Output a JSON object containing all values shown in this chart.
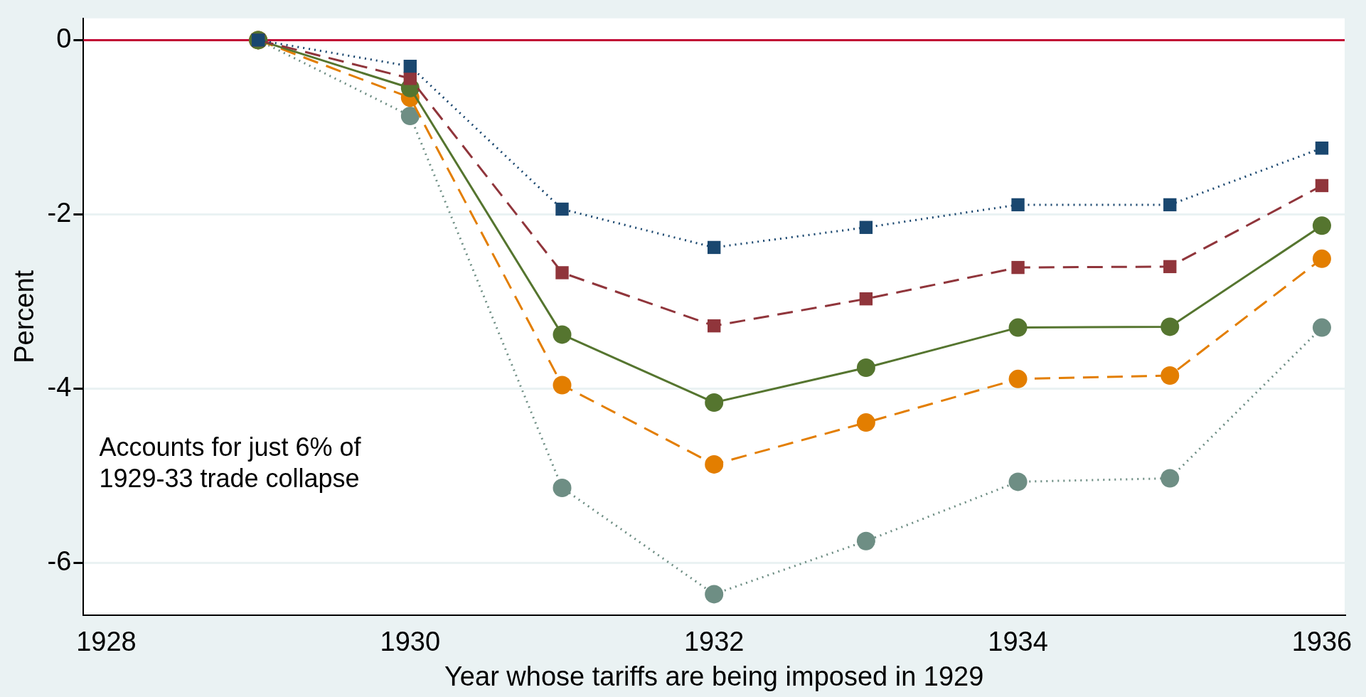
{
  "chart_data": {
    "type": "line",
    "xlabel": "Year whose tariffs are being imposed in 1929",
    "ylabel": "Percent",
    "x": [
      1929,
      1930,
      1931,
      1932,
      1933,
      1934,
      1935,
      1936
    ],
    "series": [
      {
        "color": "#1a476f",
        "marker": "square",
        "line_style": "dotted",
        "values": [
          0,
          -0.3,
          -1.94,
          -2.38,
          -2.15,
          -1.89,
          -1.89,
          -1.24
        ]
      },
      {
        "color": "#90353b",
        "marker": "square",
        "line_style": "dashed",
        "values": [
          0,
          -0.44,
          -2.67,
          -3.28,
          -2.97,
          -2.61,
          -2.6,
          -1.67
        ]
      },
      {
        "color": "#55752f",
        "marker": "circle",
        "line_style": "solid",
        "values": [
          0,
          -0.55,
          -3.38,
          -4.16,
          -3.76,
          -3.3,
          -3.29,
          -2.13
        ]
      },
      {
        "color": "#e37e00",
        "marker": "circle",
        "line_style": "dashed",
        "values": [
          0,
          -0.66,
          -3.96,
          -4.87,
          -4.39,
          -3.89,
          -3.85,
          -2.51
        ]
      },
      {
        "color": "#6e8e84",
        "marker": "circle",
        "line_style": "dotted",
        "values": [
          0,
          -0.87,
          -5.14,
          -6.36,
          -5.75,
          -5.07,
          -5.03,
          -3.3
        ]
      }
    ],
    "xlim": [
      1927.85,
      1936.15
    ],
    "xticks": [
      1928,
      1930,
      1932,
      1934,
      1936
    ],
    "ylim": [
      -6.6,
      0.25
    ],
    "yticks": [
      -6,
      -4,
      -2,
      0
    ],
    "grid": "y",
    "legend": false,
    "ref_lines": [
      {
        "axis": "y",
        "value": 0,
        "color": "#c10534",
        "line_style": "solid"
      }
    ],
    "annotations": [
      "Accounts for just 6% of 1929-33 trade collapse"
    ]
  }
}
